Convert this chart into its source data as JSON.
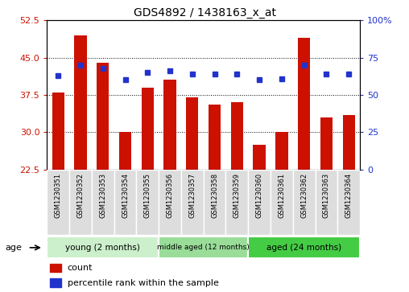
{
  "title": "GDS4892 / 1438163_x_at",
  "samples": [
    "GSM1230351",
    "GSM1230352",
    "GSM1230353",
    "GSM1230354",
    "GSM1230355",
    "GSM1230356",
    "GSM1230357",
    "GSM1230358",
    "GSM1230359",
    "GSM1230360",
    "GSM1230361",
    "GSM1230362",
    "GSM1230363",
    "GSM1230364"
  ],
  "counts": [
    38.0,
    49.5,
    44.0,
    30.0,
    39.0,
    40.5,
    37.0,
    35.5,
    36.0,
    27.5,
    30.0,
    49.0,
    33.0,
    33.5
  ],
  "percentiles": [
    63,
    70,
    68,
    60,
    65,
    66,
    64,
    64,
    64,
    60,
    61,
    70,
    64,
    64
  ],
  "ylim_left": [
    22.5,
    52.5
  ],
  "ylim_right": [
    0,
    100
  ],
  "yticks_left": [
    22.5,
    30.0,
    37.5,
    45.0,
    52.5
  ],
  "yticks_right": [
    0,
    25,
    50,
    75,
    100
  ],
  "bar_color": "#cc1100",
  "dot_color": "#2233cc",
  "bg_color": "#ffffff",
  "plot_bg": "#ffffff",
  "grid_color": "#000000",
  "groups": [
    {
      "label": "young (2 months)",
      "start": 0,
      "end": 5,
      "color": "#ccf0cc"
    },
    {
      "label": "middle aged (12 months)",
      "start": 5,
      "end": 9,
      "color": "#99dd99"
    },
    {
      "label": "aged (24 months)",
      "start": 9,
      "end": 14,
      "color": "#44cc44"
    }
  ],
  "legend_items": [
    {
      "label": "count",
      "color": "#cc1100"
    },
    {
      "label": "percentile rank within the sample",
      "color": "#2233cc"
    }
  ],
  "age_label": "age",
  "tick_bg": "#dddddd"
}
